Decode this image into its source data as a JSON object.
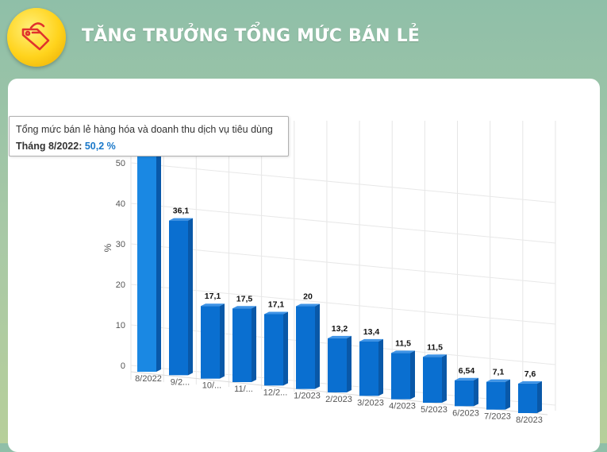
{
  "header": {
    "title": "TĂNG TRƯỞNG TỔNG MỨC BÁN LẺ",
    "icon": "price-tag-icon"
  },
  "tooltip": {
    "series_name": "Tổng mức bán lẻ hàng hóa và doanh thu dịch vụ tiêu dùng",
    "category": "Tháng 8/2022:",
    "value": "50,2 %"
  },
  "colors": {
    "bar_front": "#0a6fd0",
    "bar_side": "#0958a8",
    "bar_top": "#3e93e6",
    "highlight_bar": "#1a88e3"
  },
  "chart_data": {
    "type": "bar",
    "ylabel": "%",
    "ylim": [
      0,
      50
    ],
    "yticks": [
      {
        "value": 0,
        "label": "0"
      },
      {
        "value": 10,
        "label": "10"
      },
      {
        "value": 20,
        "label": "20"
      },
      {
        "value": 30,
        "label": "30"
      },
      {
        "value": 40,
        "label": "40"
      },
      {
        "value": 50,
        "label": "50"
      }
    ],
    "grid": true,
    "categories": [
      "8/2022",
      "9/2...",
      "10/...",
      "11/...",
      "12/2...",
      "1/2023",
      "2/2023",
      "3/2023",
      "4/2023",
      "5/2023",
      "6/2023",
      "7/2023",
      "8/2023"
    ],
    "values": [
      50.2,
      36.1,
      17.1,
      17.5,
      17.1,
      20,
      13.2,
      13.4,
      11.5,
      11.5,
      6.54,
      7.1,
      7.6
    ],
    "data_labels": [
      "",
      "36,1",
      "17,1",
      "17,5",
      "17,1",
      "20",
      "13,2",
      "13,4",
      "11,5",
      "11,5",
      "6,54",
      "7,1",
      "7,6"
    ],
    "series": [
      {
        "name": "Tổng mức bán lẻ hàng hóa và doanh thu dịch vụ tiêu dùng",
        "values": [
          50.2,
          36.1,
          17.1,
          17.5,
          17.1,
          20,
          13.2,
          13.4,
          11.5,
          11.5,
          6.54,
          7.1,
          7.6
        ]
      }
    ]
  }
}
